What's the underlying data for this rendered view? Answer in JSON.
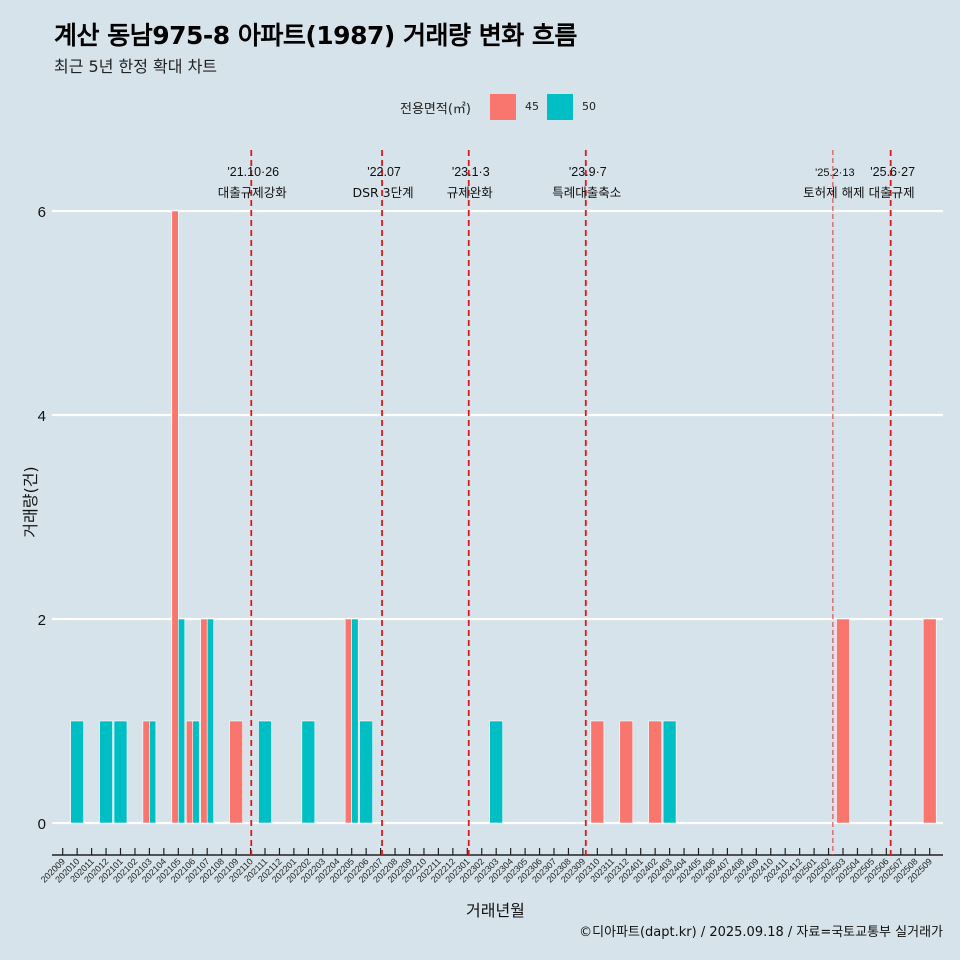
{
  "title": "계산 동남975-8 아파트(1987) 거래량 변화 흐름",
  "subtitle": "최근 5년 한정 확대 차트",
  "legend": {
    "title": "전용면적(㎡)",
    "items": [
      {
        "label": "45",
        "color": "#f8766d"
      },
      {
        "label": "50",
        "color": "#00bfc4"
      }
    ]
  },
  "caption": "©디아파트(dapt.kr) / 2025.09.18 / 자료=국토교통부 실거래가",
  "chart_data": {
    "type": "bar",
    "title": "계산 동남975-8 아파트(1987) 거래량 변화 흐름",
    "subtitle": "최근 5년 한정 확대 차트",
    "xlabel": "거래년월",
    "ylabel": "거래량(건)",
    "ylim": [
      0,
      6
    ],
    "yticks": [
      "0",
      "2",
      "4",
      "6"
    ],
    "grid": "horizontal",
    "legend_position": "top",
    "categories": [
      "202009",
      "202010",
      "202011",
      "202012",
      "202101",
      "202102",
      "202103",
      "202104",
      "202105",
      "202106",
      "202107",
      "202108",
      "202109",
      "202110",
      "202111",
      "202112",
      "202201",
      "202202",
      "202203",
      "202204",
      "202205",
      "202206",
      "202207",
      "202208",
      "202209",
      "202210",
      "202211",
      "202212",
      "202301",
      "202302",
      "202303",
      "202304",
      "202305",
      "202306",
      "202307",
      "202308",
      "202309",
      "202310",
      "202311",
      "202312",
      "202401",
      "202402",
      "202403",
      "202404",
      "202405",
      "202406",
      "202407",
      "202408",
      "202409",
      "202410",
      "202411",
      "202412",
      "202501",
      "202502",
      "202503",
      "202504",
      "202505",
      "202506",
      "202507",
      "202508",
      "202509"
    ],
    "series": [
      {
        "name": "45",
        "color": "#f8766d",
        "values": [
          0,
          0,
          0,
          0,
          0,
          0,
          1,
          0,
          6,
          1,
          2,
          0,
          1,
          0,
          0,
          0,
          0,
          0,
          0,
          0,
          2,
          0,
          0,
          0,
          0,
          0,
          0,
          0,
          0,
          0,
          0,
          0,
          0,
          0,
          0,
          0,
          0,
          1,
          0,
          1,
          0,
          1,
          0,
          0,
          0,
          0,
          0,
          0,
          0,
          0,
          0,
          0,
          0,
          0,
          2,
          0,
          0,
          0,
          0,
          0,
          2
        ]
      },
      {
        "name": "50",
        "color": "#00bfc4",
        "values": [
          0,
          1,
          0,
          1,
          1,
          0,
          1,
          0,
          2,
          1,
          2,
          0,
          0,
          0,
          1,
          0,
          0,
          1,
          0,
          0,
          2,
          1,
          0,
          0,
          0,
          0,
          0,
          0,
          0,
          0,
          1,
          0,
          0,
          0,
          0,
          0,
          0,
          0,
          0,
          0,
          0,
          0,
          1,
          0,
          0,
          0,
          0,
          0,
          0,
          0,
          0,
          0,
          0,
          0,
          0,
          0,
          0,
          0,
          0,
          0,
          0
        ]
      }
    ],
    "annotations": [
      {
        "month": "202110",
        "date": "'21.10·26",
        "label": "대출규제강화",
        "style": "dashed"
      },
      {
        "month": "202207",
        "date": "'22.07",
        "label": "DSR 3단계",
        "style": "dashed"
      },
      {
        "month": "202301",
        "date": "'23.1·3",
        "label": "규제완화",
        "style": "dashed"
      },
      {
        "month": "202309",
        "date": "'23.9·7",
        "label": "특례대출축소",
        "style": "dashed"
      },
      {
        "month": "202502",
        "date": "'25.2·13",
        "label": "토허제 해제",
        "style": "thin-dashed"
      },
      {
        "month": "202506",
        "date": "'25.6·27",
        "label": "대출규제",
        "style": "dashed"
      }
    ]
  }
}
